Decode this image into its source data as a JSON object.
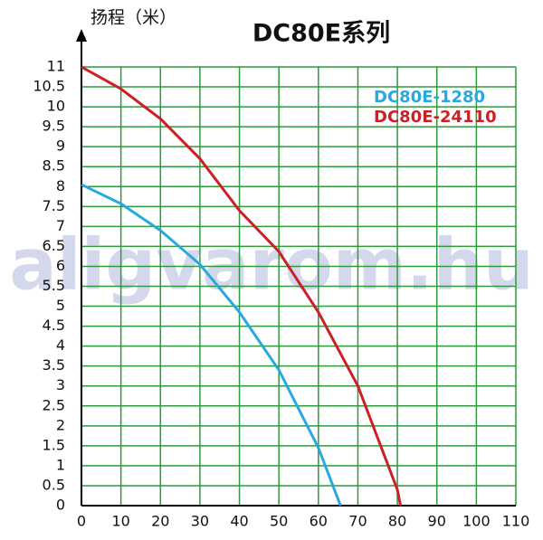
{
  "chart_data": {
    "type": "line",
    "title": "DC80E系列",
    "y_label": "扬程（米）",
    "watermark": "aligvarom.hu",
    "xlim": [
      0,
      110
    ],
    "xticks": [
      0,
      10,
      20,
      30,
      40,
      50,
      60,
      70,
      80,
      90,
      100,
      110
    ],
    "ylim": [
      0,
      11
    ],
    "yticks": [
      0,
      0.5,
      1,
      1.5,
      2,
      2.5,
      3,
      3.5,
      4,
      4.5,
      5,
      5.5,
      6,
      6.5,
      7,
      7.5,
      8,
      8.5,
      9,
      9.5,
      10,
      10.5,
      11
    ],
    "grid": true,
    "grid_color": "#2e9a3c",
    "legend": "upper right",
    "series": [
      {
        "name": "DC80E-1280",
        "color": "#27a9df",
        "x": [
          0,
          10,
          20,
          30,
          40,
          50,
          60,
          65.6
        ],
        "values": [
          8.05,
          7.57,
          6.9,
          6.05,
          4.85,
          3.4,
          1.45,
          0
        ]
      },
      {
        "name": "DC80E-24110",
        "color": "#cc1f26",
        "x": [
          0,
          10,
          20,
          30,
          40,
          50,
          60,
          70,
          80,
          80.8
        ],
        "values": [
          11,
          10.45,
          9.7,
          8.7,
          7.4,
          6.37,
          4.85,
          3.0,
          0.4,
          0
        ]
      }
    ]
  }
}
